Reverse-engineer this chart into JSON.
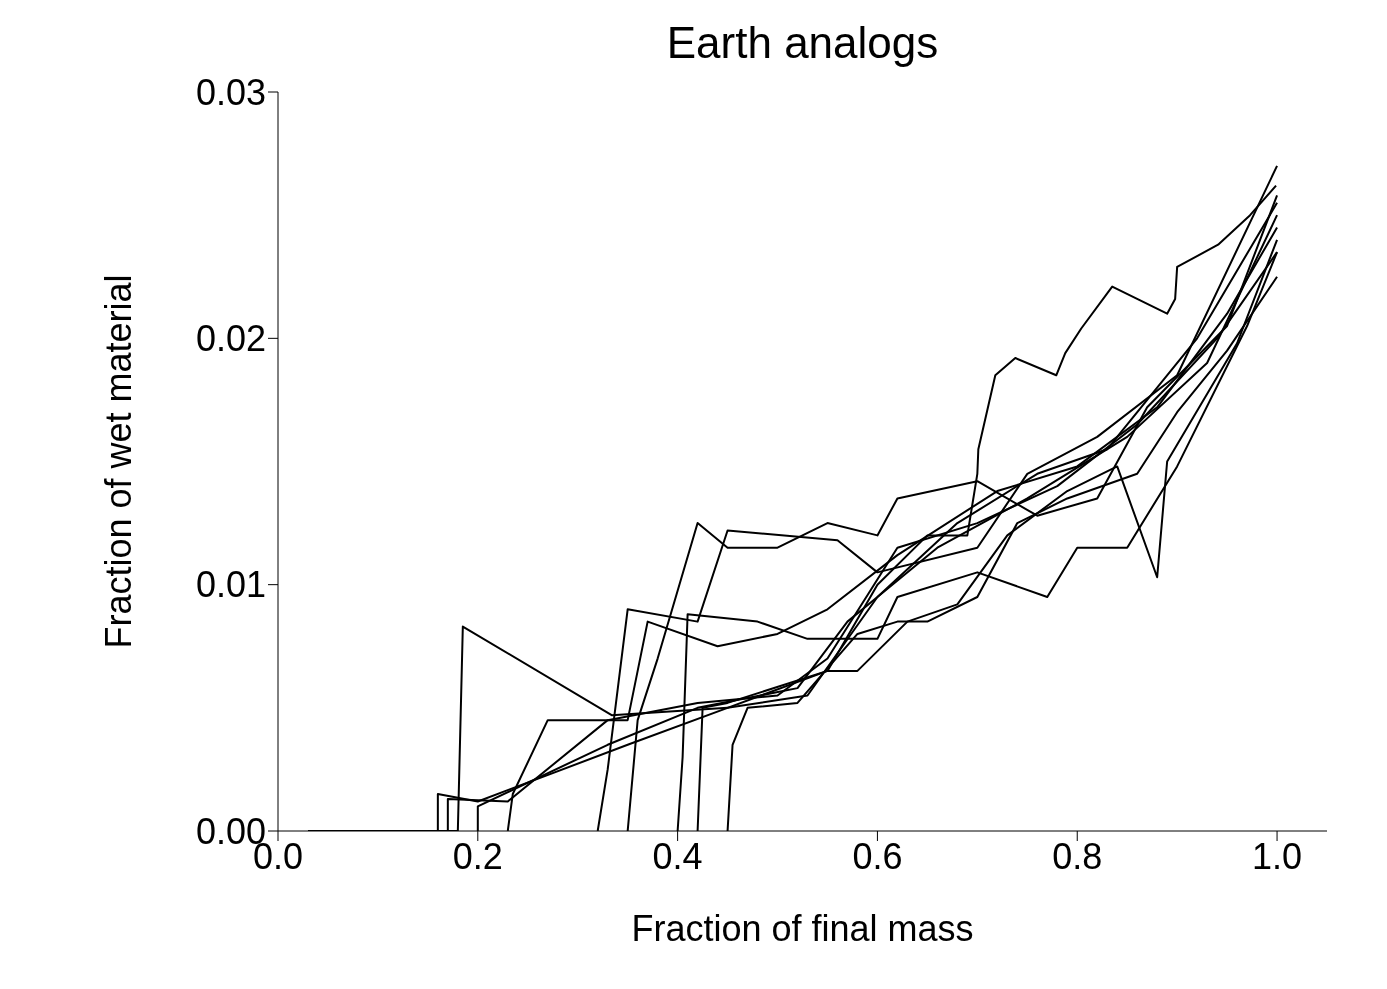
{
  "chart_data": {
    "type": "line",
    "title": "Earth analogs",
    "xlabel": "Fraction of final mass",
    "ylabel": "Fraction of wet material",
    "xlim": [
      0,
      1.05
    ],
    "ylim": [
      0,
      0.03
    ],
    "xticks": [
      {
        "value": 0,
        "label": "0.0"
      },
      {
        "value": 0.2,
        "label": "0.2"
      },
      {
        "value": 0.4,
        "label": "0.4"
      },
      {
        "value": 0.6,
        "label": "0.6"
      },
      {
        "value": 0.8,
        "label": "0.8"
      },
      {
        "value": 1,
        "label": "1.0"
      }
    ],
    "yticks": [
      {
        "value": 0,
        "label": "0.00"
      },
      {
        "value": 0.01,
        "label": "0.01"
      },
      {
        "value": 0.02,
        "label": "0.02"
      },
      {
        "value": 0.03,
        "label": "0.03"
      }
    ],
    "marker": "none",
    "series": [
      {
        "color": "#000000",
        "x": [
          0.03,
          0.18,
          0.185,
          0.334,
          0.45,
          0.55,
          0.6,
          0.65,
          0.69,
          0.7,
          0.701,
          0.718,
          0.738,
          0.779,
          0.788,
          0.804,
          0.835,
          0.89,
          0.898,
          0.9,
          0.941,
          0.973,
          0.999
        ],
        "values": [
          0,
          0,
          0.0083,
          0.0047,
          0.005,
          0.0065,
          0.01,
          0.012,
          0.012,
          0.0145,
          0.0155,
          0.0185,
          0.0192,
          0.0185,
          0.0194,
          0.0204,
          0.0221,
          0.021,
          0.0216,
          0.0229,
          0.0238,
          0.025,
          0.0262
        ]
      },
      {
        "color": "#000000",
        "x": [
          0.16,
          0.16,
          0.2,
          0.35,
          0.45,
          0.53,
          0.6,
          0.66,
          0.75,
          0.85,
          0.93,
          1.0
        ],
        "values": [
          0,
          0.0015,
          0.0012,
          0.0035,
          0.005,
          0.0055,
          0.0095,
          0.0115,
          0.0135,
          0.016,
          0.019,
          0.025
        ]
      },
      {
        "color": "#000000",
        "x": [
          0.17,
          0.17,
          0.23,
          0.33,
          0.42,
          0.5,
          0.55,
          0.62,
          0.7,
          0.78,
          0.86,
          0.94,
          1.0
        ],
        "values": [
          0,
          0.0013,
          0.0012,
          0.0045,
          0.0052,
          0.0055,
          0.007,
          0.0115,
          0.0125,
          0.014,
          0.0165,
          0.02,
          0.0235
        ]
      },
      {
        "color": "#000000",
        "x": [
          0.2,
          0.2,
          0.33,
          0.42,
          0.52,
          0.57,
          0.6,
          0.68,
          0.76,
          0.83,
          0.92,
          1.0
        ],
        "values": [
          0,
          0.001,
          0.0035,
          0.005,
          0.0058,
          0.0085,
          0.0095,
          0.0125,
          0.0145,
          0.0155,
          0.02,
          0.0255
        ]
      },
      {
        "color": "#000000",
        "x": [
          0.23,
          0.235,
          0.27,
          0.35,
          0.37,
          0.44,
          0.5,
          0.55,
          0.62,
          0.72,
          0.8,
          0.88,
          0.95,
          1.0
        ],
        "values": [
          0,
          0.0015,
          0.0045,
          0.0045,
          0.0085,
          0.0075,
          0.008,
          0.009,
          0.0112,
          0.0138,
          0.0148,
          0.0172,
          0.021,
          0.0245
        ]
      },
      {
        "color": "#000000",
        "x": [
          0.32,
          0.33,
          0.35,
          0.42,
          0.45,
          0.56,
          0.6,
          0.7,
          0.75,
          0.82,
          0.9,
          1.0
        ],
        "values": [
          0,
          0.0025,
          0.009,
          0.0085,
          0.0122,
          0.0118,
          0.0105,
          0.0115,
          0.0145,
          0.016,
          0.0185,
          0.027
        ]
      },
      {
        "color": "#000000",
        "x": [
          0.35,
          0.36,
          0.38,
          0.42,
          0.45,
          0.5,
          0.55,
          0.6,
          0.62,
          0.7,
          0.76,
          0.82,
          0.87,
          0.95,
          1.0
        ],
        "values": [
          0,
          0.0045,
          0.007,
          0.0125,
          0.0115,
          0.0115,
          0.0125,
          0.012,
          0.0135,
          0.0142,
          0.0128,
          0.0135,
          0.0172,
          0.0205,
          0.0258
        ]
      },
      {
        "color": "#000000",
        "x": [
          0.4,
          0.405,
          0.41,
          0.48,
          0.53,
          0.6,
          0.62,
          0.7,
          0.77,
          0.8,
          0.85,
          0.9,
          0.97,
          1.0
        ],
        "values": [
          0,
          0.003,
          0.0088,
          0.0085,
          0.0078,
          0.0078,
          0.0095,
          0.0105,
          0.0095,
          0.0115,
          0.0115,
          0.0148,
          0.0205,
          0.0235
        ]
      },
      {
        "color": "#000000",
        "x": [
          0.42,
          0.425,
          0.45,
          0.55,
          0.58,
          0.63,
          0.68,
          0.73,
          0.79,
          0.84,
          0.88,
          0.89,
          0.96,
          1.0
        ],
        "values": [
          0,
          0.005,
          0.0052,
          0.0065,
          0.0065,
          0.0085,
          0.0092,
          0.012,
          0.0138,
          0.0148,
          0.0103,
          0.015,
          0.0198,
          0.024
        ]
      },
      {
        "color": "#000000",
        "x": [
          0.45,
          0.455,
          0.47,
          0.52,
          0.58,
          0.62,
          0.65,
          0.7,
          0.74,
          0.79,
          0.86,
          0.9,
          0.95,
          1.0
        ],
        "values": [
          0,
          0.0035,
          0.005,
          0.0052,
          0.008,
          0.0085,
          0.0085,
          0.0095,
          0.0125,
          0.0135,
          0.0145,
          0.017,
          0.0195,
          0.0225
        ]
      }
    ]
  }
}
